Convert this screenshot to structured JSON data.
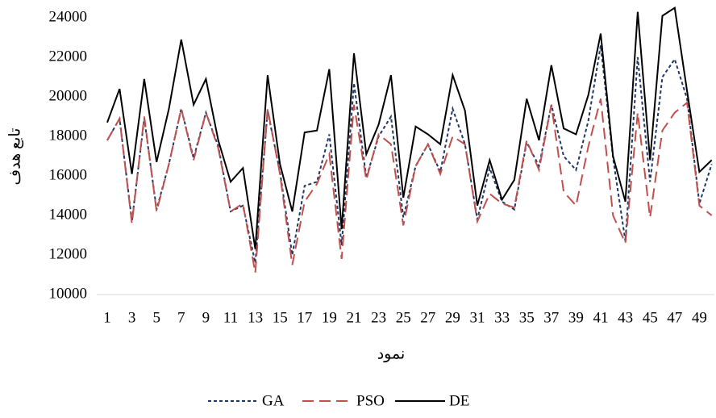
{
  "chart_data": {
    "type": "line",
    "x_label": "نمود",
    "y_label": "تابع هدف",
    "categories": [
      "1",
      null,
      "3",
      null,
      "5",
      null,
      "7",
      null,
      "9",
      null,
      "11",
      null,
      "13",
      null,
      "15",
      null,
      "17",
      null,
      "19",
      null,
      "21",
      null,
      "23",
      null,
      "25",
      null,
      "27",
      null,
      "29",
      null,
      "31",
      null,
      "33",
      null,
      "35",
      null,
      "37",
      null,
      "39",
      null,
      "41",
      null,
      "43",
      null,
      "45",
      null,
      "47",
      null,
      "49",
      null
    ],
    "series": [
      {
        "name": "GA",
        "color": "#1f3864",
        "dash": "4 3",
        "values": [
          17800,
          18900,
          13700,
          18900,
          14300,
          16600,
          19400,
          16900,
          19200,
          17500,
          14200,
          14500,
          11600,
          19300,
          16200,
          12000,
          15500,
          15700,
          18100,
          12500,
          20700,
          15900,
          18000,
          19000,
          13900,
          16500,
          17600,
          16200,
          19400,
          17600,
          13800,
          16400,
          14700,
          14300,
          17700,
          16500,
          19600,
          17000,
          16300,
          18800,
          22600,
          16900,
          12700,
          22000,
          15700,
          21000,
          21900,
          19900,
          14600,
          16600
        ]
      },
      {
        "name": "PSO",
        "color": "#c0504d",
        "dash": "14 7",
        "values": [
          17800,
          18900,
          13600,
          19000,
          14200,
          16600,
          19400,
          16800,
          19200,
          17400,
          14200,
          14600,
          11100,
          19400,
          16100,
          11500,
          14700,
          15600,
          17100,
          11800,
          19600,
          15800,
          18100,
          17600,
          13500,
          16500,
          17600,
          16100,
          18000,
          17600,
          13700,
          15100,
          14600,
          14400,
          17800,
          16300,
          19600,
          15200,
          14500,
          17500,
          19900,
          14000,
          12600,
          19200,
          13900,
          18300,
          19200,
          19700,
          14500,
          14000
        ]
      },
      {
        "name": "DE",
        "color": "#000000",
        "dash": "none",
        "values": [
          18700,
          20400,
          16100,
          20900,
          16700,
          19400,
          22900,
          19600,
          20900,
          17800,
          15700,
          16400,
          12300,
          21100,
          16600,
          14200,
          18200,
          18300,
          21400,
          13300,
          22200,
          17100,
          18600,
          21100,
          14900,
          18500,
          18100,
          17600,
          21100,
          19300,
          14500,
          16800,
          14800,
          15800,
          19900,
          17800,
          21600,
          18400,
          18100,
          20100,
          23200,
          17000,
          14700,
          24300,
          16800,
          24100,
          24500,
          20300,
          16200,
          16800
        ]
      }
    ],
    "ylim": [
      10000,
      24000
    ],
    "yticks": [
      10000,
      12000,
      14000,
      16000,
      18000,
      20000,
      22000,
      24000
    ],
    "grid": false,
    "legend": "bottom"
  }
}
